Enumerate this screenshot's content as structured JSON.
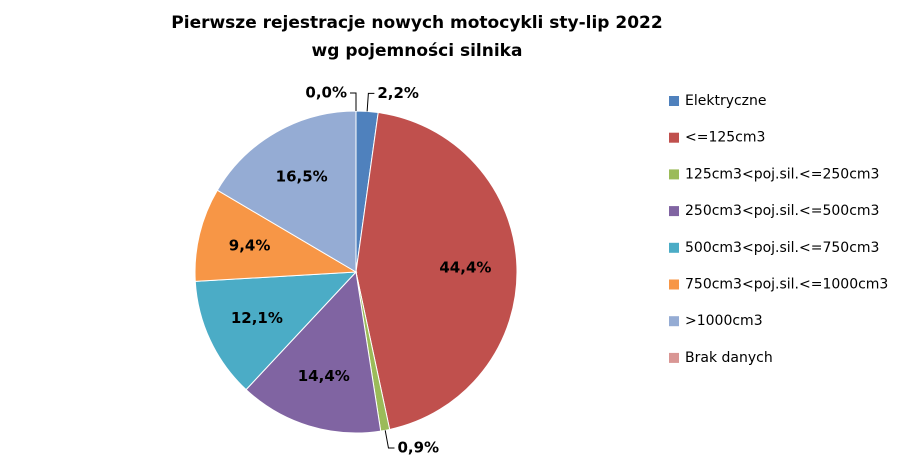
{
  "chart_data": {
    "type": "pie",
    "title": "Pierwsze rejestracje nowych motocykli sty-lip 2022",
    "subtitle": "wg pojemności silnika",
    "categories": [
      "Elektryczne",
      "<=125cm3",
      "125cm3<poj.sil.<=250cm3",
      "250cm3<poj.sil.<=500cm3",
      "500cm3<poj.sil.<=750cm3",
      "750cm3<poj.sil.<=1000cm3",
      ">1000cm3",
      "Brak danych"
    ],
    "values": [
      2.2,
      44.4,
      0.9,
      14.4,
      12.1,
      9.4,
      16.5,
      0.0
    ],
    "value_labels": [
      "2,2%",
      "44,4%",
      "0,9%",
      "14,4%",
      "12,1%",
      "9,4%",
      "16,5%",
      "0,0%"
    ],
    "colors": [
      "#4f81bd",
      "#c0504d",
      "#9bbb59",
      "#8064a2",
      "#4bacc6",
      "#f79646",
      "#95acd4",
      "#d99694"
    ],
    "legend": "right"
  }
}
